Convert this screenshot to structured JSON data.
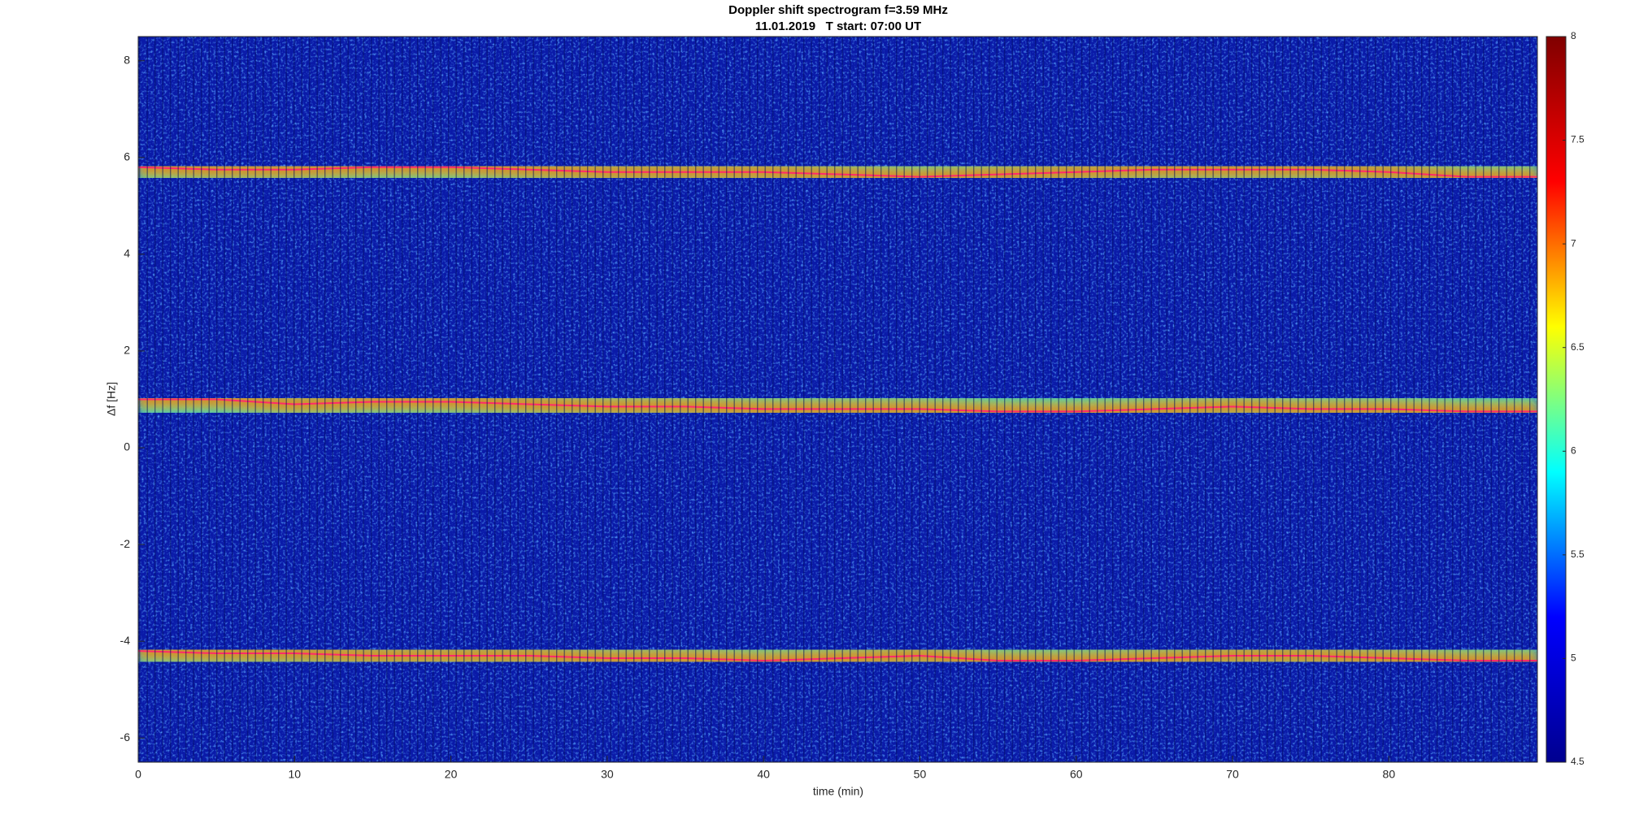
{
  "chart_data": {
    "type": "spectrogram",
    "title": "Doppler shift spectrogram f=3.59 MHz",
    "subtitle": "11.01.2019   T start: 07:00 UT",
    "xlabel": "time (min)",
    "ylabel": "Δf [Hz]",
    "xlim": [
      0,
      89.5
    ],
    "ylim": [
      -6.5,
      8.5
    ],
    "xticks": [
      0,
      10,
      20,
      30,
      40,
      50,
      60,
      70,
      80
    ],
    "yticks": [
      -6,
      -4,
      -2,
      0,
      2,
      4,
      6,
      8
    ],
    "x": [
      0,
      5,
      10,
      15,
      20,
      25,
      30,
      35,
      40,
      45,
      50,
      55,
      60,
      65,
      70,
      75,
      80,
      85,
      89.5
    ],
    "series": [
      {
        "color": "#ff2a6a",
        "values": [
          5.8,
          5.75,
          5.75,
          5.8,
          5.8,
          5.75,
          5.7,
          5.7,
          5.7,
          5.65,
          5.6,
          5.65,
          5.7,
          5.75,
          5.75,
          5.75,
          5.7,
          5.6,
          5.6
        ]
      },
      {
        "color": "#ff2a6a",
        "values": [
          1.0,
          1.0,
          0.9,
          0.95,
          0.95,
          0.9,
          0.85,
          0.85,
          0.8,
          0.8,
          0.8,
          0.75,
          0.75,
          0.8,
          0.85,
          0.8,
          0.8,
          0.75,
          0.75
        ]
      },
      {
        "color": "#ff2a6a",
        "values": [
          -4.2,
          -4.25,
          -4.25,
          -4.3,
          -4.3,
          -4.3,
          -4.35,
          -4.35,
          -4.4,
          -4.35,
          -4.3,
          -4.4,
          -4.4,
          -4.35,
          -4.3,
          -4.3,
          -4.35,
          -4.4,
          -4.4
        ]
      }
    ],
    "colorbar": {
      "lim": [
        4.5,
        8
      ],
      "ticks": [
        4.5,
        5,
        5.5,
        6,
        6.5,
        7,
        7.5,
        8
      ],
      "colors": [
        "#00008f",
        "#0000ff",
        "#00ffff",
        "#ffff00",
        "#ff0000",
        "#800000"
      ]
    }
  }
}
